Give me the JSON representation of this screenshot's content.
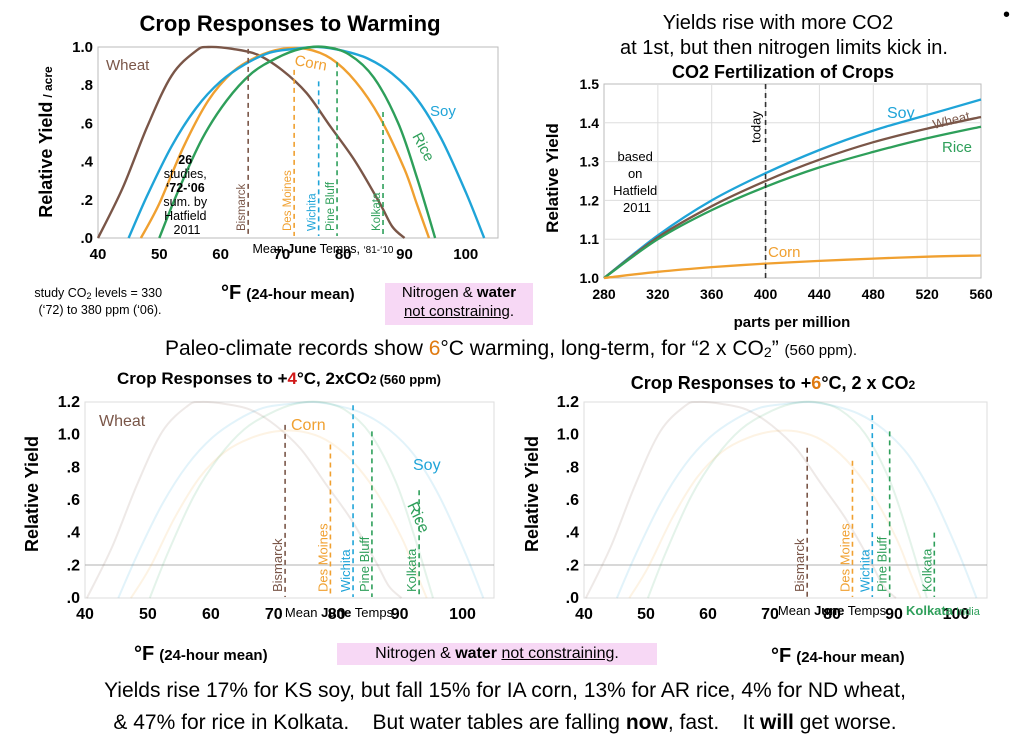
{
  "colors": {
    "wheat": "#7a5648",
    "corn": "#f0a030",
    "soy": "#1fa4d8",
    "rice": "#2e9f5a",
    "ref": "#cccccc"
  },
  "chart_data": [
    {
      "type": "line",
      "title": "Crop Responses to Warming",
      "ylabel": "Relative Yield",
      "ylabel_unit": "/ acre",
      "xlabel": "°F",
      "xlabel_suffix": "(24-hour mean)",
      "xlim": [
        40,
        105
      ],
      "ylim": [
        0,
        1.0
      ],
      "x_ticks": [
        "40",
        "50",
        "60",
        "70",
        "80",
        "90",
        "100"
      ],
      "y_ticks": [
        ".0",
        ".2",
        ".4",
        ".6",
        ".8",
        "1.0"
      ],
      "series": [
        {
          "name": "Wheat",
          "color": "wheat",
          "x": [
            40,
            44,
            48,
            52,
            56,
            58,
            62,
            66,
            70,
            74,
            78,
            82,
            86,
            88,
            90
          ],
          "y": [
            0,
            0.26,
            0.58,
            0.85,
            0.98,
            1.0,
            0.99,
            0.96,
            0.88,
            0.76,
            0.58,
            0.4,
            0.18,
            0.06,
            0
          ]
        },
        {
          "name": "Corn",
          "color": "corn",
          "x": [
            47,
            50,
            54,
            58,
            62,
            66,
            70,
            74,
            78,
            82,
            86,
            90,
            92,
            94
          ],
          "y": [
            0,
            0.18,
            0.48,
            0.72,
            0.87,
            0.95,
            0.99,
            0.99,
            0.94,
            0.82,
            0.63,
            0.36,
            0.18,
            0
          ]
        },
        {
          "name": "Soy",
          "color": "soy",
          "x": [
            45,
            48,
            52,
            56,
            60,
            64,
            68,
            72,
            76,
            80,
            84,
            88,
            92,
            96,
            100,
            103
          ],
          "y": [
            0,
            0.22,
            0.48,
            0.68,
            0.82,
            0.91,
            0.97,
            0.99,
            1.0,
            0.98,
            0.94,
            0.86,
            0.73,
            0.52,
            0.24,
            0
          ]
        },
        {
          "name": "Rice",
          "color": "rice",
          "x": [
            50,
            53,
            57,
            61,
            65,
            69,
            73,
            77,
            81,
            85,
            89,
            92,
            95
          ],
          "y": [
            0,
            0.24,
            0.52,
            0.72,
            0.86,
            0.94,
            0.99,
            1.0,
            0.96,
            0.84,
            0.6,
            0.32,
            0
          ]
        }
      ],
      "vlines": [
        {
          "label": "Bismarck",
          "x": 64.5,
          "top": 0.99,
          "color": "wheat"
        },
        {
          "label": "Des Moines",
          "x": 72,
          "top": 0.88,
          "color": "corn"
        },
        {
          "label": "Wichita",
          "x": 76,
          "top": 0.82,
          "color": "soy"
        },
        {
          "label": "Pine Bluff",
          "x": 79,
          "top": 0.92,
          "color": "rice"
        },
        {
          "label": "Kolkata",
          "x": 86.5,
          "top": 0.66,
          "color": "rice"
        }
      ],
      "vline_caption": {
        "pre": "Mean ",
        "bold": "June",
        "post": " Temps, ",
        "small": "‘81-‘10"
      },
      "annotation": {
        "n": "26",
        "l1": "studies,",
        "bold": "‘72-‘06",
        "l3": "sum. by",
        "l4": "Hatfield",
        "l5": "2011"
      }
    },
    {
      "type": "line",
      "intro_line1": "Yields rise with more CO2",
      "intro_line2": "at 1st, but then nitrogen limits kick in.",
      "title": "CO2 Fertilization of Crops",
      "ylabel": "Relative Yield",
      "xlabel": "parts per million",
      "xlim": [
        280,
        560
      ],
      "ylim": [
        1.0,
        1.5
      ],
      "x_ticks": [
        "280",
        "320",
        "360",
        "400",
        "440",
        "480",
        "520",
        "560"
      ],
      "y_ticks": [
        "1.0",
        "1.1",
        "1.2",
        "1.3",
        "1.4",
        "1.5"
      ],
      "today": 400,
      "today_label": "today",
      "side_note": [
        "based",
        "on",
        "Hatfield",
        "2011"
      ],
      "series": [
        {
          "name": "Soy",
          "color": "soy",
          "x": [
            280,
            320,
            360,
            400,
            440,
            480,
            520,
            560
          ],
          "y": [
            1.0,
            1.11,
            1.2,
            1.27,
            1.33,
            1.38,
            1.42,
            1.46
          ]
        },
        {
          "name": "Wheat",
          "color": "wheat",
          "x": [
            280,
            320,
            360,
            400,
            440,
            480,
            520,
            560
          ],
          "y": [
            1.0,
            1.105,
            1.185,
            1.25,
            1.305,
            1.35,
            1.385,
            1.415
          ]
        },
        {
          "name": "Rice",
          "color": "rice",
          "x": [
            280,
            320,
            360,
            400,
            440,
            480,
            520,
            560
          ],
          "y": [
            1.0,
            1.1,
            1.175,
            1.235,
            1.285,
            1.325,
            1.36,
            1.39
          ]
        },
        {
          "name": "Corn",
          "color": "corn",
          "x": [
            280,
            320,
            360,
            400,
            440,
            480,
            520,
            560
          ],
          "y": [
            1.0,
            1.016,
            1.028,
            1.037,
            1.044,
            1.05,
            1.055,
            1.058
          ]
        }
      ]
    },
    {
      "type": "line",
      "title_pre": "Crop Responses to +",
      "title_num": "4",
      "title_post": "°C, 2xCO",
      "title_sub": "2",
      "title_small": "(560 ppm)",
      "ylabel": "Relative Yield",
      "xlabel": "°F",
      "xlabel_suffix": "(24-hour mean)",
      "xlim": [
        40,
        105
      ],
      "ylim": [
        0,
        1.2
      ],
      "x_ticks": [
        "40",
        "50",
        "60",
        "70",
        "80",
        "90",
        "100"
      ],
      "y_ticks": [
        ".0",
        ".2",
        ".4",
        ".6",
        ".8",
        "1.0",
        "1.2"
      ],
      "labels": [
        "Wheat",
        "Corn",
        "Soy",
        "Rice"
      ],
      "vlines": [
        {
          "label": "Bismarck",
          "x": 71.8,
          "top": 1.06,
          "color": "wheat"
        },
        {
          "label": "Des Moines",
          "x": 79,
          "top": 0.94,
          "color": "corn"
        },
        {
          "label": "Wichita",
          "x": 82.6,
          "top": 1.18,
          "color": "soy"
        },
        {
          "label": "Pine Bluff",
          "x": 85.6,
          "top": 1.02,
          "color": "rice"
        },
        {
          "label": "Kolkata",
          "x": 93.1,
          "top": 0.66,
          "color": "rice"
        }
      ],
      "vline_caption": {
        "pre": "Mean ",
        "bold": "June",
        "post": " Temps"
      }
    },
    {
      "type": "line",
      "title_pre": "Crop Responses to +",
      "title_num": "6",
      "title_post": "°C, 2 x CO",
      "title_sub": "2",
      "ylabel": "Relative Yield",
      "xlabel": "°F",
      "xlabel_suffix": "(24-hour mean)",
      "xlim": [
        40,
        105
      ],
      "ylim": [
        0,
        1.2
      ],
      "x_ticks": [
        "40",
        "50",
        "60",
        "70",
        "80",
        "90",
        "100"
      ],
      "y_ticks": [
        ".0",
        ".2",
        ".4",
        ".6",
        ".8",
        "1.0",
        "1.2"
      ],
      "vlines": [
        {
          "label": "Bismarck",
          "x": 76,
          "top": 0.92,
          "color": "wheat"
        },
        {
          "label": "Des Moines",
          "x": 83.3,
          "top": 0.84,
          "color": "corn"
        },
        {
          "label": "Wichita",
          "x": 86.5,
          "top": 1.12,
          "color": "soy"
        },
        {
          "label": "Pine Bluff",
          "x": 89.3,
          "top": 1.02,
          "color": "rice"
        },
        {
          "label": "Kolkata",
          "x": 96.5,
          "top": 0.4,
          "color": "rice"
        }
      ],
      "vline_caption": {
        "pre": "Mean ",
        "bold": "June",
        "post": " Temps"
      },
      "kolkata_note": {
        "bold": "Kolkata",
        "small": "India"
      }
    }
  ],
  "study_note": {
    "line1_pre": "study CO",
    "line1_sub": "2",
    "line1_post": " levels = 330",
    "line2": "(‘72) to 380 ppm (‘06)."
  },
  "box_top": {
    "pre": "Nitrogen & ",
    "bold": "water",
    "under": "not constraining",
    "post": "."
  },
  "box_bottom": {
    "pre": "Nitrogen & ",
    "bold": "water",
    "under": "not constraining",
    "post": "."
  },
  "paleo": {
    "pre": "Paleo-climate records show ",
    "num": "6",
    "mid": "°C warming, long-term, for “2 x CO",
    "sub": "2",
    "post": "” ",
    "small": "(560 ppm)."
  },
  "bottom_text": {
    "line1": "Yields rise 17% for KS soy, but fall 15% for IA corn, 13% for AR rice, 4% for ND wheat,",
    "line2_pre": "& 47% for rice in Kolkata.    But water tables are falling ",
    "bold1": "now",
    "mid": ", fast.    It ",
    "bold2": "will",
    "post": " get worse."
  },
  "bullet": "•"
}
